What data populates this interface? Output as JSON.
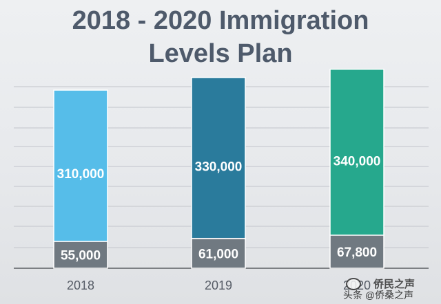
{
  "chart_data": {
    "type": "bar",
    "stacked": true,
    "title": "2018 - 2020 Immigration Levels Plan",
    "title_lines": [
      "2018 - 2020 Immigration",
      "Levels Plan"
    ],
    "categories": [
      "2018",
      "2019",
      "2020"
    ],
    "series": [
      {
        "values": [
          55000,
          61000,
          67800
        ],
        "labels": [
          "55,000",
          "61,000",
          "67,800"
        ],
        "color": "#707981"
      },
      {
        "values": [
          310000,
          330000,
          340000
        ],
        "labels": [
          "310,000",
          "330,000",
          "340,000"
        ],
        "colors": [
          "#56bde9",
          "#2a7b9c",
          "#26a88d"
        ]
      }
    ],
    "ylim": [
      0,
      420000
    ],
    "grid": true,
    "legend": "none"
  },
  "watermark": {
    "name": "侨民之声",
    "handle": "头条 @侨桑之声"
  }
}
